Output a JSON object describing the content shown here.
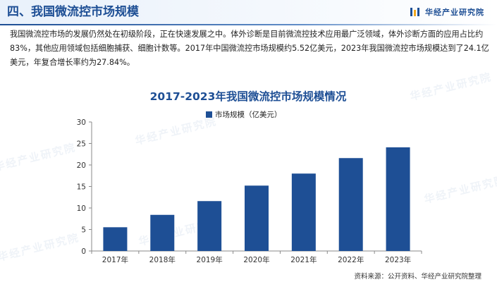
{
  "header": {
    "section_title": "四、我国微流控市场规模",
    "brand_name": "华经产业研究院",
    "brand_logo_icon": "brand-logo-icon"
  },
  "intro_text": "我国微流控市场的发展仍然处在初级阶段，正在快速发展之中。体外诊断是目前微流控技术应用最广泛领域，体外诊断方面的应用占比约83%，其他应用领域包括细胞捕获、细胞计数等。2017年中国微流控市场规模约5.52亿美元，2023年我国微流控市场规模达到了24.1亿美元，年复合增长率约为27.84%。",
  "watermark_text": "华经产业研究院",
  "source_text": "资料来源：公开资料、华经产业研究院整理",
  "colors": {
    "brand": "#1e4f95",
    "bar": "#1e4f95",
    "axis": "#666666",
    "text": "#222222"
  },
  "chart_data": {
    "type": "bar",
    "title": "2017-2023年我国微流控市场规模情况",
    "categories": [
      "2017年",
      "2018年",
      "2019年",
      "2020年",
      "2021年",
      "2022年",
      "2023年"
    ],
    "series": [
      {
        "name": "市场规模（亿美元）",
        "values": [
          5.52,
          8.4,
          11.6,
          15.2,
          18.0,
          21.6,
          24.1
        ]
      }
    ],
    "y_ticks": [
      "0",
      "5",
      "10",
      "15",
      "20",
      "25",
      "30"
    ],
    "ylim": [
      0,
      30
    ],
    "xlabel": "",
    "ylabel": "",
    "grid": false,
    "legend_position": "top-center"
  }
}
